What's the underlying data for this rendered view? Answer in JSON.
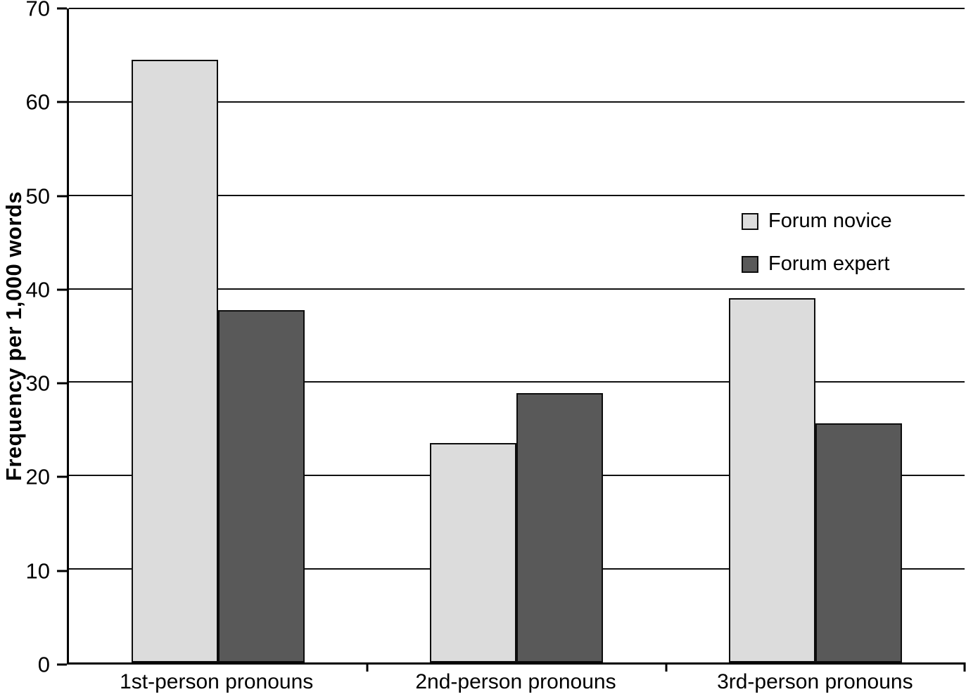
{
  "chart_data": {
    "type": "bar",
    "title": "",
    "xlabel": "",
    "ylabel": "Frequency per 1,000 words",
    "categories": [
      "1st-person pronouns",
      "2nd-person pronouns",
      "3rd-person pronouns"
    ],
    "series": [
      {
        "name": "Forum novice",
        "color": "#dcdcdc",
        "values": [
          64.5,
          23.5,
          39.0
        ]
      },
      {
        "name": "Forum expert",
        "color": "#595959",
        "values": [
          37.7,
          28.8,
          25.6
        ]
      }
    ],
    "ylim": [
      0,
      70
    ],
    "yticks": [
      0,
      10,
      20,
      30,
      40,
      50,
      60,
      70
    ],
    "grid": true,
    "gridline_color": "#111111",
    "bar_border_color": "#0d0d0d",
    "legend_position": "upper-right"
  }
}
